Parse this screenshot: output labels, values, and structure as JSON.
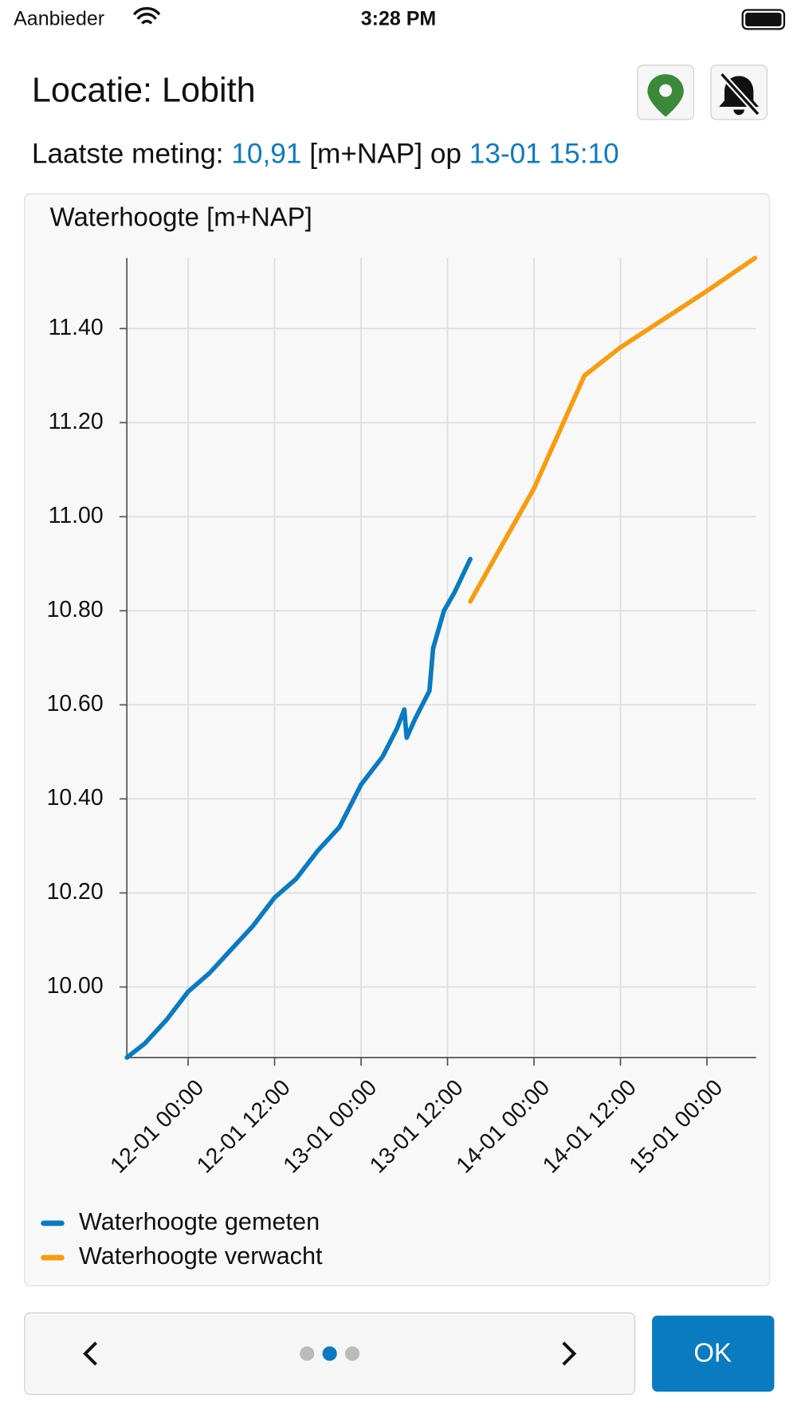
{
  "status_bar": {
    "carrier": "Aanbieder",
    "time": "3:28 PM"
  },
  "header": {
    "title": "Locatie: Lobith",
    "measurement_prefix": "Laatste meting:",
    "measurement_value": "10,91",
    "measurement_unit": "[m+NAP] op",
    "measurement_time": "13-01 15:10"
  },
  "chart_data": {
    "type": "line",
    "title": "Waterhoogte [m+NAP]",
    "xlim": [
      "11-01 15:30",
      "15-01 06:50"
    ],
    "xticks": [
      "12-01 00:00",
      "12-01 12:00",
      "13-01 00:00",
      "13-01 12:00",
      "14-01 00:00",
      "14-01 12:00",
      "15-01 00:00"
    ],
    "ylim": [
      9.85,
      11.55
    ],
    "yticks": [
      {
        "value": 10,
        "label": "10.00"
      },
      {
        "value": 10.2,
        "label": "10.20"
      },
      {
        "value": 10.4,
        "label": "10.40"
      },
      {
        "value": 10.6,
        "label": "10.60"
      },
      {
        "value": 10.8,
        "label": "10.80"
      },
      {
        "value": 11,
        "label": "11.00"
      },
      {
        "value": 11.2,
        "label": "11.20"
      },
      {
        "value": 11.4,
        "label": "11.40"
      }
    ],
    "grid": true,
    "legend": "bottom-left",
    "series": [
      {
        "name": "Waterhoogte gemeten",
        "color": "#0a7bc1",
        "x": [
          "11-01 15:30",
          "11-01 18:00",
          "11-01 21:00",
          "12-01 00:00",
          "12-01 03:00",
          "12-01 06:00",
          "12-01 09:00",
          "12-01 12:00",
          "12-01 15:00",
          "12-01 18:00",
          "12-01 21:00",
          "13-01 00:00",
          "13-01 03:00",
          "13-01 05:00",
          "13-01 06:00",
          "13-01 06:20",
          "13-01 07:30",
          "13-01 09:30",
          "13-01 10:00",
          "13-01 11:30",
          "13-01 13:00",
          "13-01 15:10"
        ],
        "values": [
          9.85,
          9.88,
          9.93,
          9.99,
          10.03,
          10.08,
          10.13,
          10.19,
          10.23,
          10.29,
          10.34,
          10.43,
          10.49,
          10.55,
          10.59,
          10.53,
          10.57,
          10.63,
          10.72,
          10.8,
          10.84,
          10.91
        ]
      },
      {
        "name": "Waterhoogte verwacht",
        "color": "#f89c0e",
        "x": [
          "13-01 15:10",
          "14-01 00:00",
          "14-01 07:00",
          "14-01 12:00",
          "15-01 00:00",
          "15-01 06:40"
        ],
        "values": [
          10.82,
          11.06,
          11.3,
          11.36,
          11.48,
          11.55
        ]
      }
    ]
  },
  "footer": {
    "ok": "OK"
  }
}
